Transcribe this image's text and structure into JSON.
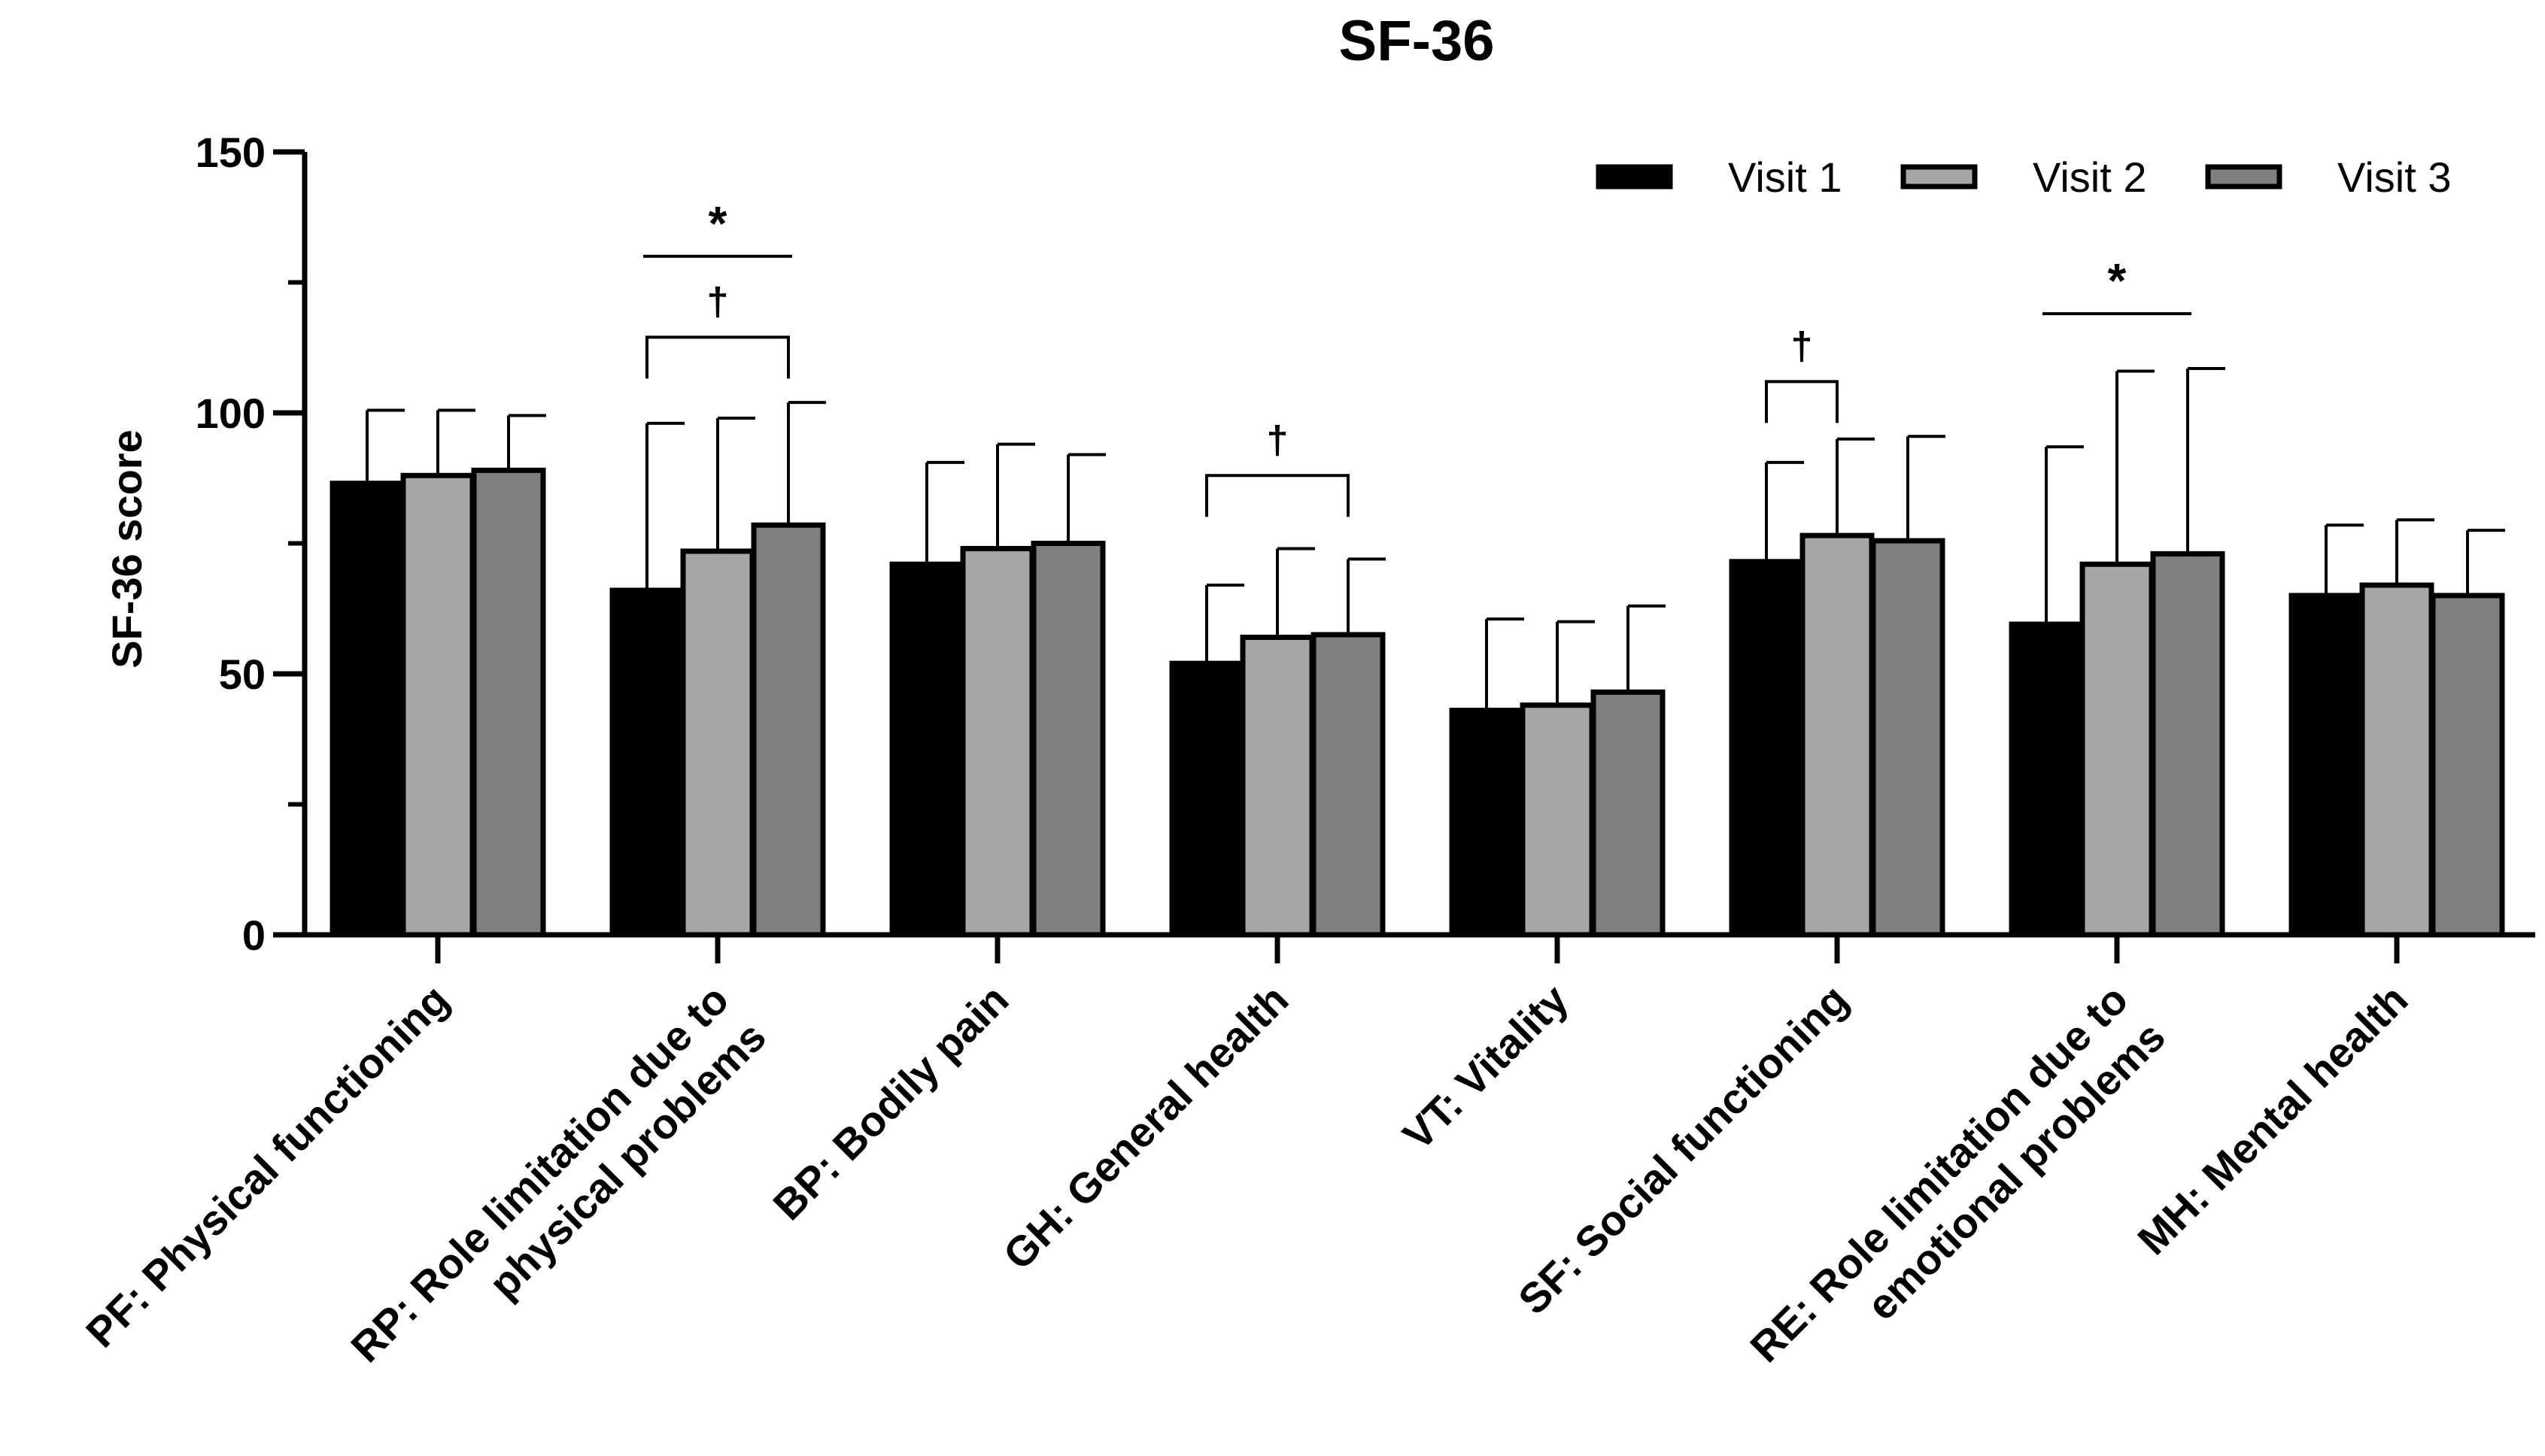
{
  "chart_data": {
    "type": "bar",
    "title": "SF-36",
    "xlabel": "",
    "ylabel": "SF-36 score",
    "ylim": [
      0,
      150
    ],
    "yticks": [
      0,
      50,
      100,
      150
    ],
    "ytick_labels": [
      "0",
      "50",
      "100",
      "150"
    ],
    "grid": false,
    "legend_position": "top-right",
    "categories": [
      "PF: Physical functioning",
      "RP: Role limitation due to\nphysical problems",
      "BP: Bodily pain",
      "GH: General health",
      "VT: Vitality",
      "SF: Social functioning",
      "RE: Role limitation due to\nemotional problems",
      "MH: Mental health"
    ],
    "series": [
      {
        "name": "Visit 1",
        "color": "#000000",
        "values": [
          86.5,
          66,
          71,
          52,
          43,
          71.5,
          59.5,
          65
        ],
        "errors": [
          14,
          32,
          19.5,
          15,
          17.5,
          19,
          34,
          13.5
        ]
      },
      {
        "name": "Visit 2",
        "color": "#a6a6a8",
        "values": [
          88,
          73.5,
          74,
          57,
          44,
          76.5,
          71,
          67
        ],
        "errors": [
          12.5,
          25.5,
          20,
          17,
          16,
          18.5,
          37,
          12.5
        ]
      },
      {
        "name": "Visit 3",
        "color": "#808080",
        "values": [
          89,
          78.5,
          75,
          57.5,
          46.5,
          75.5,
          73,
          65
        ],
        "errors": [
          10.5,
          23.5,
          17,
          14.5,
          16.5,
          20,
          35.5,
          12.5
        ]
      }
    ],
    "annotations": [
      {
        "category_index": 1,
        "symbol": "*",
        "from_series": 0,
        "to_series": 2,
        "y": 130,
        "bracket": false
      },
      {
        "category_index": 1,
        "symbol": "†",
        "from_series": 0,
        "to_series": 2,
        "y": 114.5,
        "bracket": true
      },
      {
        "category_index": 3,
        "symbol": "†",
        "from_series": 0,
        "to_series": 2,
        "y": 88,
        "bracket": true
      },
      {
        "category_index": 5,
        "symbol": "†",
        "from_series": 0,
        "to_series": 1,
        "y": 106,
        "bracket": true
      },
      {
        "category_index": 6,
        "symbol": "*",
        "from_series": 0,
        "to_series": 2,
        "y": 119,
        "bracket": false
      }
    ]
  }
}
